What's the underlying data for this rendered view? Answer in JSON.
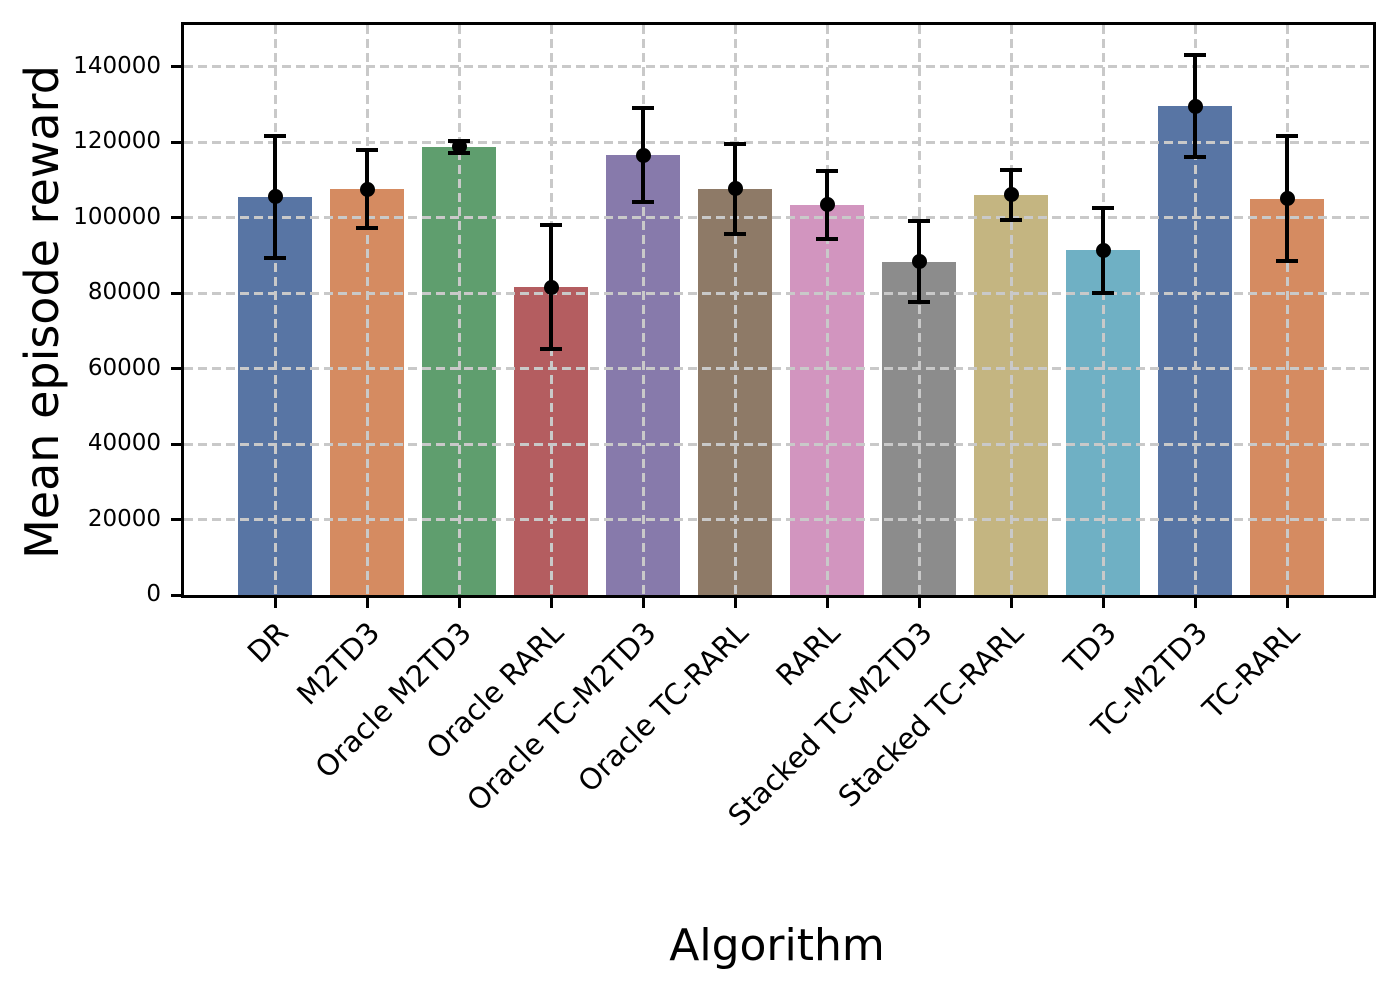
{
  "chart_data": {
    "type": "bar",
    "title": "",
    "xlabel": "Algorithm",
    "ylabel": "Mean episode reward",
    "categories": [
      "DR",
      "M2TD3",
      "Oracle M2TD3",
      "Oracle RARL",
      "Oracle TC-M2TD3",
      "Oracle TC-RARL",
      "RARL",
      "Stacked TC-M2TD3",
      "Stacked TC-RARL",
      "TD3",
      "TC-M2TD3",
      "TC-RARL"
    ],
    "values": [
      105500,
      107500,
      118700,
      81500,
      116500,
      107600,
      103400,
      88300,
      106000,
      91300,
      129500,
      105000
    ],
    "errors": [
      16200,
      10400,
      1500,
      16400,
      12500,
      12000,
      9000,
      10800,
      6700,
      11300,
      13500,
      16600
    ],
    "bar_colors": [
      "#5875a4",
      "#d58b61",
      "#5f9e6e",
      "#b45d60",
      "#877aab",
      "#8e7a67",
      "#d295bf",
      "#8c8c8c",
      "#c4b581",
      "#6fb0c4",
      "#5875a4",
      "#d58b61"
    ],
    "error_bar_color": "#000000",
    "yticks": [
      0,
      20000,
      40000,
      60000,
      80000,
      100000,
      120000,
      140000
    ],
    "ytick_labels": [
      "0",
      "20000",
      "40000",
      "60000",
      "80000",
      "100000",
      "120000",
      "140000"
    ],
    "ylim": [
      0,
      151000
    ],
    "grid": "dashed",
    "grid_color": "#c9c9c9",
    "legend": "none"
  }
}
